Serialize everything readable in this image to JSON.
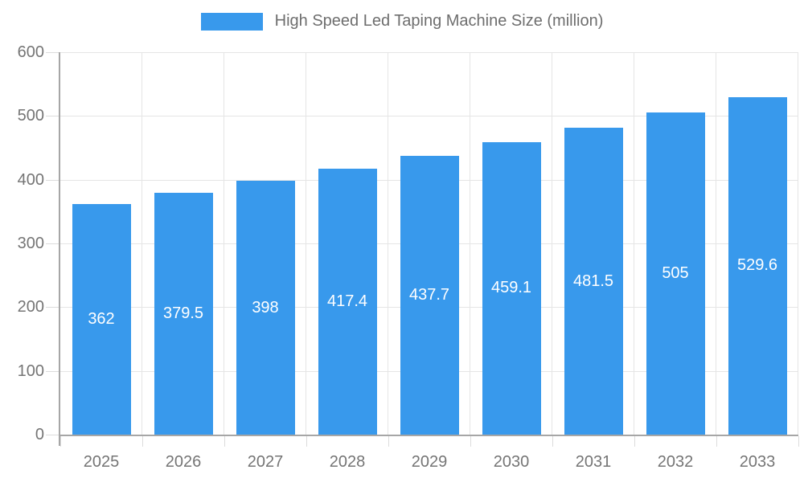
{
  "chart_data": {
    "type": "bar",
    "title": "",
    "legend_label": "High Speed Led Taping Machine Size (million)",
    "legend_position": "top",
    "categories": [
      "2025",
      "2026",
      "2027",
      "2028",
      "2029",
      "2030",
      "2031",
      "2032",
      "2033"
    ],
    "values": [
      362,
      379.5,
      398,
      417.4,
      437.7,
      459.1,
      481.5,
      505,
      529.6
    ],
    "value_labels": [
      "362",
      "379.5",
      "398",
      "417.4",
      "437.7",
      "459.1",
      "481.5",
      "505",
      "529.6"
    ],
    "xlabel": "",
    "ylabel": "",
    "ylim": [
      0,
      600
    ],
    "ytick_step": 100,
    "ytick_labels": [
      "0",
      "100",
      "200",
      "300",
      "400",
      "500",
      "600"
    ],
    "grid": true,
    "colors": {
      "bar": "#3899ec",
      "bar_label_text": "#ffffff",
      "axis_text": "#757575",
      "legend_text": "#6e6e6e",
      "axis_line": "#a6a6a6",
      "gridline": "#e5e5e5",
      "background": "#ffffff"
    }
  }
}
